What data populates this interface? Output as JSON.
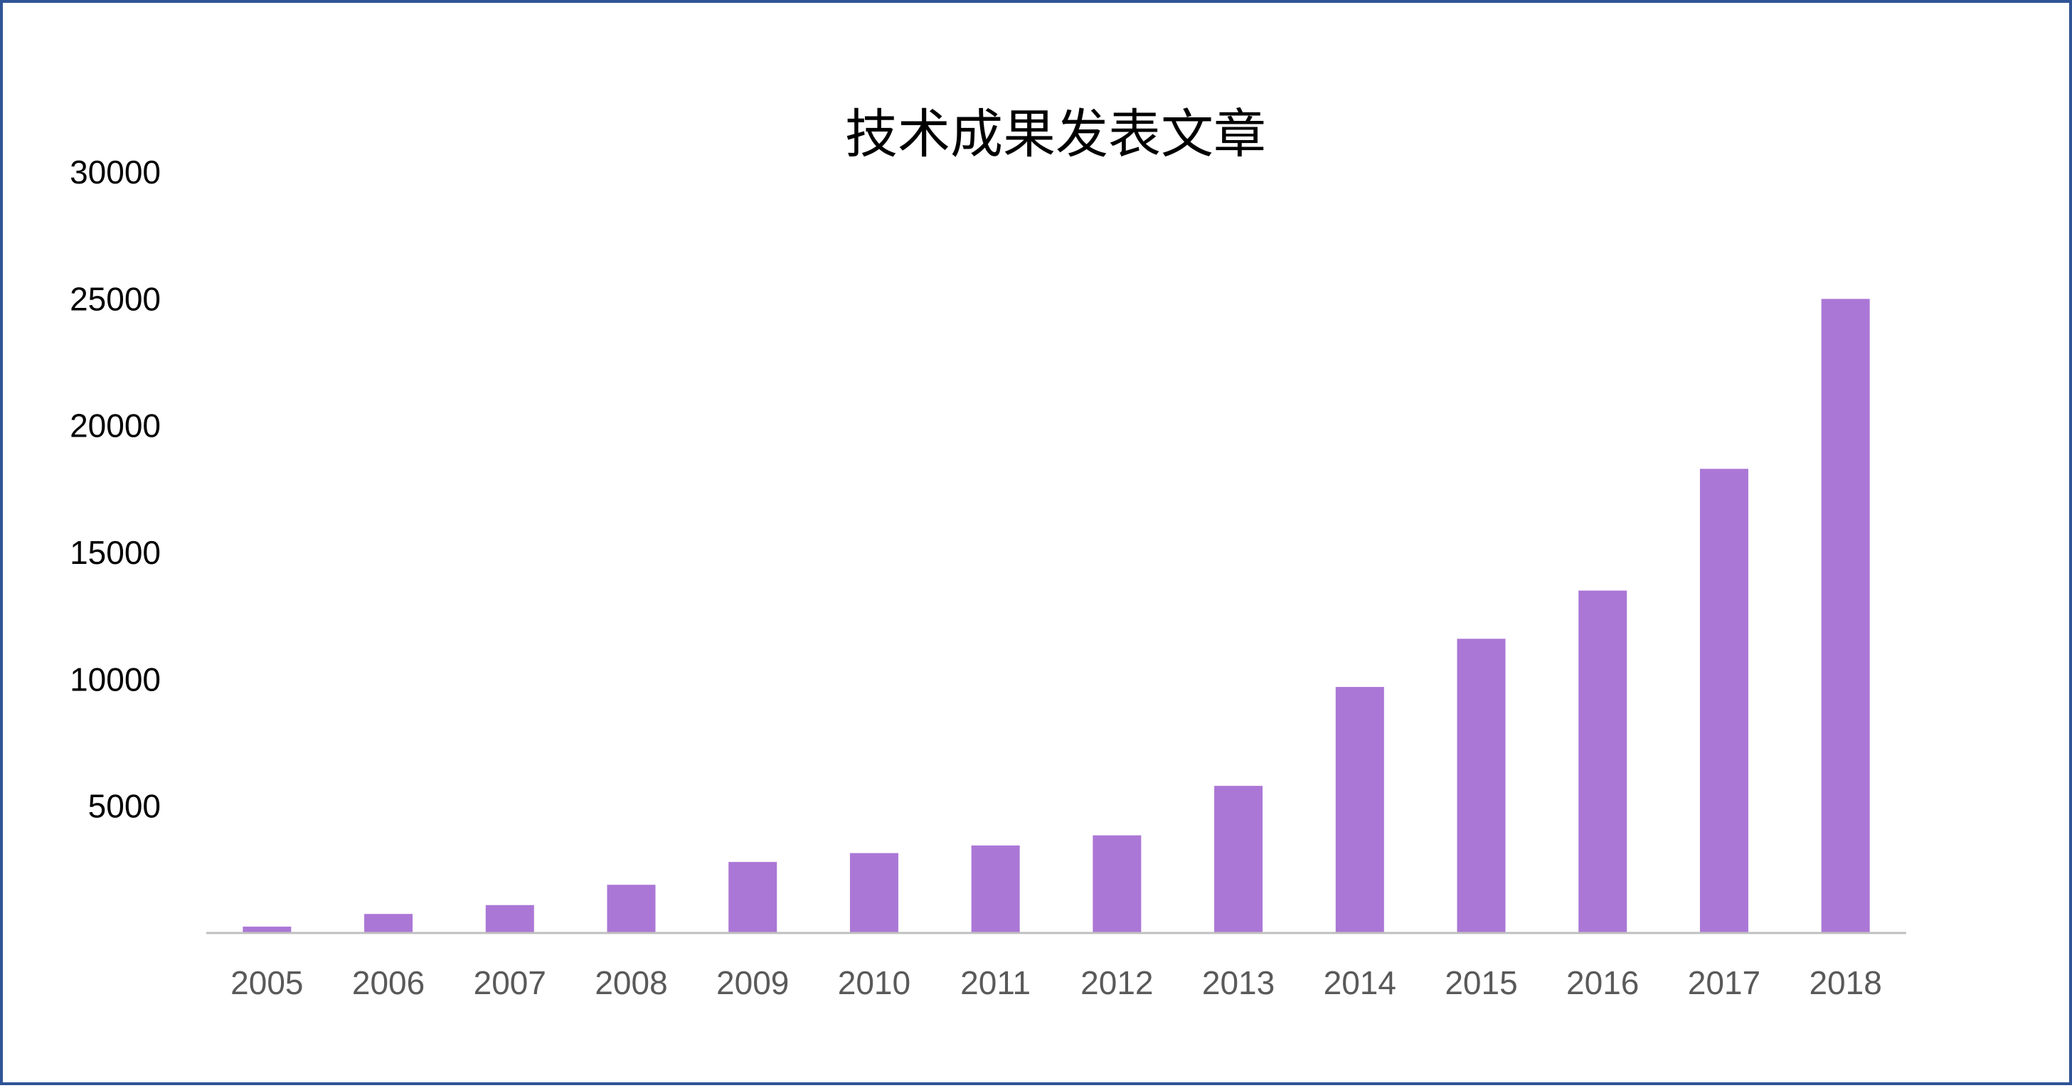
{
  "chart_data": {
    "type": "bar",
    "title": "技术成果发表文章",
    "xlabel": "",
    "ylabel": "",
    "categories": [
      "2005",
      "2006",
      "2007",
      "2008",
      "2009",
      "2010",
      "2011",
      "2012",
      "2013",
      "2014",
      "2015",
      "2016",
      "2017",
      "2018"
    ],
    "values": [
      250,
      750,
      1100,
      1900,
      2800,
      3150,
      3450,
      3850,
      5800,
      9700,
      11600,
      13500,
      18300,
      25000
    ],
    "yticks": [
      "5000",
      "10000",
      "15000",
      "20000",
      "25000",
      "30000"
    ],
    "ylim": [
      0,
      30000
    ],
    "grid": false,
    "legend": "none",
    "colors": {
      "bar": "#ab77d6",
      "axis": "#bfbfbf",
      "frame": "#2f5496"
    }
  }
}
